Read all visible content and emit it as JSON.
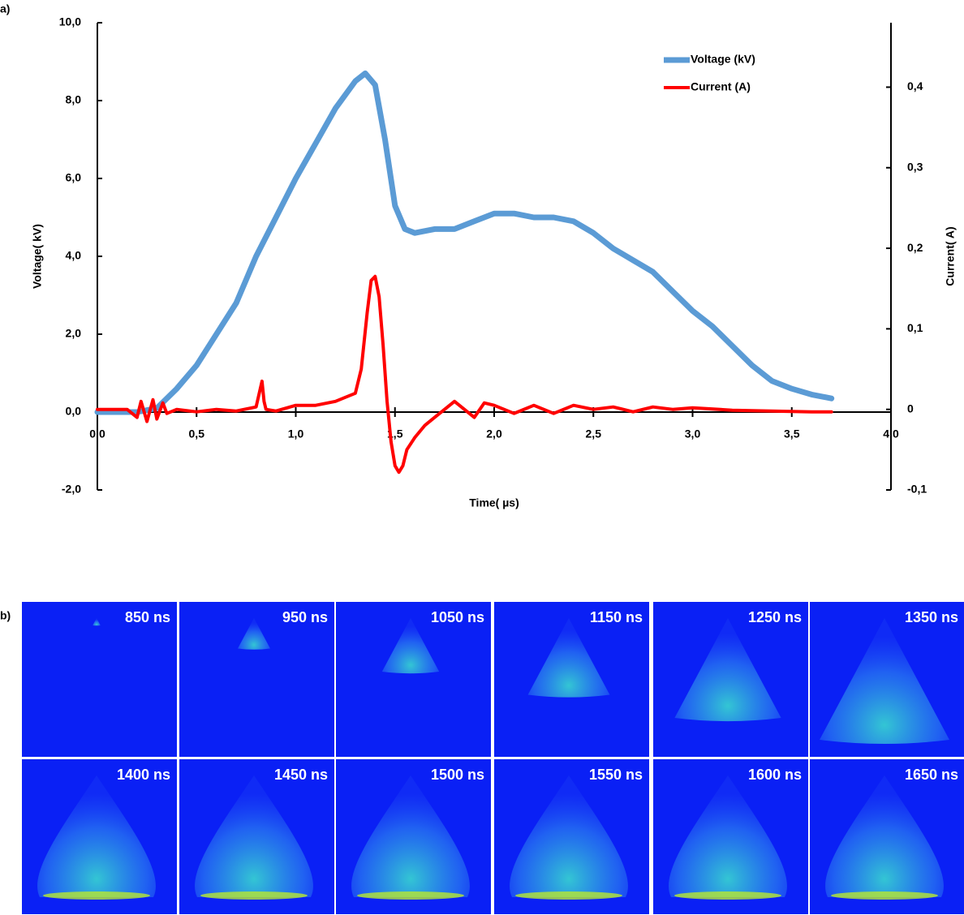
{
  "panel_labels": [
    "a)",
    "b)"
  ],
  "chart_data": {
    "type": "line",
    "xlabel": "Time( µs)",
    "ylabel": "Voltage( kV)",
    "y2label": "Current( A)",
    "xlim": [
      0,
      4
    ],
    "ylim": [
      -2,
      10
    ],
    "y2lim": [
      -0.1,
      0.48
    ],
    "xticks": [
      {
        "value": 0,
        "label": "0,0"
      },
      {
        "value": 0.5,
        "label": "0,5"
      },
      {
        "value": 1,
        "label": "1,0"
      },
      {
        "value": 1.5,
        "label": "1,5"
      },
      {
        "value": 2,
        "label": "2,0"
      },
      {
        "value": 2.5,
        "label": "2,5"
      },
      {
        "value": 3,
        "label": "3,0"
      },
      {
        "value": 3.5,
        "label": "3,5"
      },
      {
        "value": 4,
        "label": "4,0"
      }
    ],
    "yticks": [
      {
        "value": -2,
        "label": "-2,0"
      },
      {
        "value": 0,
        "label": "0,0"
      },
      {
        "value": 2,
        "label": "2,0"
      },
      {
        "value": 4,
        "label": "4,0"
      },
      {
        "value": 6,
        "label": "6,0"
      },
      {
        "value": 8,
        "label": "8,0"
      },
      {
        "value": 10,
        "label": "10,0"
      }
    ],
    "y2ticks": [
      {
        "value": -0.1,
        "label": "-0,1"
      },
      0,
      {
        "value": 0.1,
        "label": "0,1"
      },
      {
        "value": 0.2,
        "label": "0,2"
      },
      {
        "value": 0.3,
        "label": "0,3"
      },
      {
        "value": 0.4,
        "label": "0,4"
      }
    ],
    "legend": "top-right",
    "series": [
      {
        "name": "Voltage (kV)",
        "color": "#5b9bd5",
        "x": [
          0,
          0.1,
          0.2,
          0.3,
          0.4,
          0.5,
          0.6,
          0.7,
          0.8,
          0.9,
          1.0,
          1.1,
          1.2,
          1.3,
          1.35,
          1.4,
          1.45,
          1.5,
          1.55,
          1.6,
          1.7,
          1.8,
          1.9,
          2.0,
          2.1,
          2.2,
          2.3,
          2.4,
          2.5,
          2.6,
          2.7,
          2.8,
          2.9,
          3.0,
          3.1,
          3.2,
          3.3,
          3.4,
          3.5,
          3.6,
          3.7
        ],
        "values": [
          0,
          0,
          0,
          0.1,
          0.6,
          1.2,
          2.0,
          2.8,
          4.0,
          5.0,
          6.0,
          6.9,
          7.8,
          8.5,
          8.7,
          8.4,
          7.0,
          5.3,
          4.7,
          4.6,
          4.7,
          4.7,
          4.9,
          5.1,
          5.1,
          5.0,
          5.0,
          4.9,
          4.6,
          4.2,
          3.9,
          3.6,
          3.1,
          2.6,
          2.2,
          1.7,
          1.2,
          0.8,
          0.6,
          0.45,
          0.35
        ]
      },
      {
        "name": "Current (A)",
        "color": "#ff0000",
        "axis": "y2",
        "x": [
          0,
          0.15,
          0.2,
          0.22,
          0.25,
          0.28,
          0.3,
          0.33,
          0.35,
          0.4,
          0.5,
          0.6,
          0.7,
          0.8,
          0.83,
          0.84,
          0.85,
          0.9,
          1.0,
          1.1,
          1.2,
          1.25,
          1.3,
          1.33,
          1.36,
          1.38,
          1.4,
          1.42,
          1.44,
          1.46,
          1.48,
          1.5,
          1.52,
          1.54,
          1.56,
          1.6,
          1.65,
          1.7,
          1.75,
          1.8,
          1.85,
          1.9,
          1.95,
          2.0,
          2.1,
          2.2,
          2.3,
          2.4,
          2.5,
          2.6,
          2.7,
          2.8,
          2.9,
          3.0,
          3.2,
          3.4,
          3.6,
          3.7
        ],
        "values": [
          0,
          0,
          -0.01,
          0.01,
          -0.015,
          0.012,
          -0.012,
          0.008,
          -0.005,
          0,
          -0.003,
          0,
          -0.002,
          0.003,
          0.035,
          0.01,
          0,
          -0.002,
          0.005,
          0.005,
          0.01,
          0.015,
          0.02,
          0.05,
          0.12,
          0.16,
          0.165,
          0.14,
          0.08,
          0.01,
          -0.04,
          -0.07,
          -0.078,
          -0.07,
          -0.05,
          -0.035,
          -0.02,
          -0.01,
          0,
          0.01,
          0,
          -0.01,
          0.008,
          0.005,
          -0.005,
          0.005,
          -0.005,
          0.005,
          0,
          0.003,
          -0.003,
          0.003,
          0,
          0.002,
          -0.001,
          -0.002,
          -0.003,
          -0.003
        ]
      }
    ]
  },
  "frames": [
    "850 ns",
    "950 ns",
    "1050 ns",
    "1150 ns",
    "1250 ns",
    "1350 ns",
    "1400 ns",
    "1450 ns",
    "1500 ns",
    "1550 ns",
    "1600 ns",
    "1650 ns"
  ]
}
